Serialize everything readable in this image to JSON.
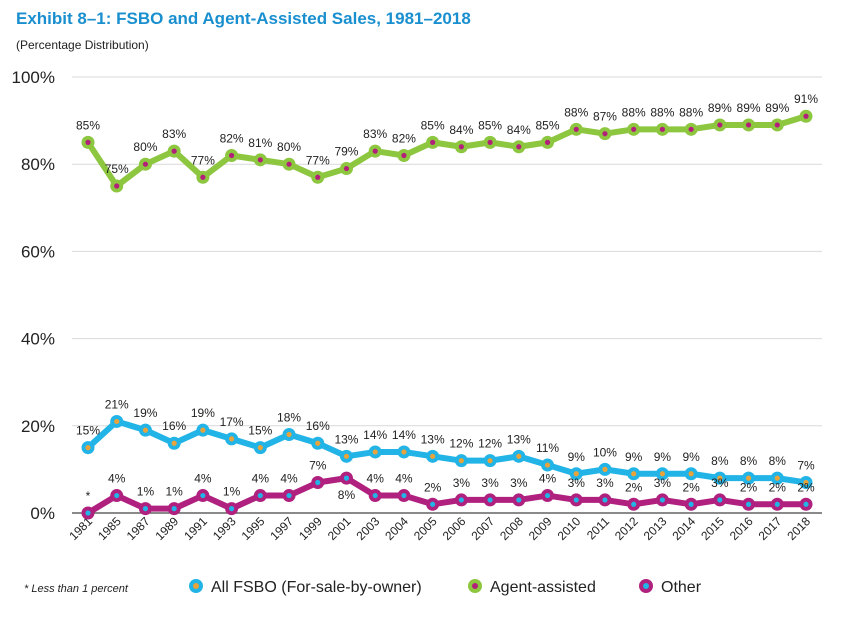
{
  "title": "Exhibit 8–1:  FSBO and Agent-Assisted Sales, 1981–2018",
  "subtitle": "(Percentage Distribution)",
  "footnote": "* Less than 1 percent",
  "chart_data": {
    "type": "line",
    "ylim": [
      0,
      100
    ],
    "yticks": [
      "0%",
      "20%",
      "40%",
      "60%",
      "80%",
      "100%"
    ],
    "grid": true,
    "legend": "bottom",
    "categories": [
      "1981",
      "1985",
      "1987",
      "1989",
      "1991",
      "1993",
      "1995",
      "1997",
      "1999",
      "2001",
      "2003",
      "2004",
      "2005",
      "2006",
      "2007",
      "2008",
      "2009",
      "2010",
      "2011",
      "2012",
      "2013",
      "2014",
      "2015",
      "2016",
      "2017",
      "2018"
    ],
    "series": [
      {
        "name": "All FSBO (For-sale-by-owner)",
        "line_color": "#22b4e6",
        "marker_color": "#e8a33b",
        "label_pos": "above",
        "values": [
          15,
          21,
          19,
          16,
          19,
          17,
          15,
          18,
          16,
          13,
          14,
          14,
          13,
          12,
          12,
          13,
          11,
          9,
          10,
          9,
          9,
          9,
          8,
          8,
          8,
          7
        ],
        "labels": [
          "15%",
          "21%",
          "19%",
          "16%",
          "19%",
          "17%",
          "15%",
          "18%",
          "16%",
          "13%",
          "14%",
          "14%",
          "13%",
          "12%",
          "12%",
          "13%",
          "11%",
          "9%",
          "10%",
          "9%",
          "9%",
          "9%",
          "8%",
          "8%",
          "8%",
          "7%"
        ]
      },
      {
        "name": "Agent-assisted",
        "line_color": "#8dc63f",
        "marker_color": "#b3207a",
        "label_pos": "above",
        "values": [
          85,
          75,
          80,
          83,
          77,
          82,
          81,
          80,
          77,
          79,
          83,
          82,
          85,
          84,
          85,
          84,
          85,
          88,
          87,
          88,
          88,
          88,
          89,
          89,
          89,
          91
        ],
        "labels": [
          "85%",
          "75%",
          "80%",
          "83%",
          "77%",
          "82%",
          "81%",
          "80%",
          "77%",
          "79%",
          "83%",
          "82%",
          "85%",
          "84%",
          "85%",
          "84%",
          "85%",
          "88%",
          "87%",
          "88%",
          "88%",
          "88%",
          "89%",
          "89%",
          "89%",
          "91%"
        ]
      },
      {
        "name": "Other",
        "line_color": "#b0207e",
        "marker_color": "#22b4e6",
        "label_pos": "above",
        "values": [
          0,
          4,
          1,
          1,
          4,
          1,
          4,
          4,
          7,
          8,
          4,
          4,
          2,
          3,
          3,
          3,
          4,
          3,
          3,
          2,
          3,
          2,
          3,
          2,
          2,
          2
        ],
        "labels": [
          "*",
          "4%",
          "1%",
          "1%",
          "4%",
          "1%",
          "4%",
          "4%",
          "7%",
          "8%",
          "4%",
          "4%",
          "2%",
          "3%",
          "3%",
          "3%",
          "4%",
          "3%",
          "3%",
          "2%",
          "3%",
          "2%",
          "3%",
          "2%",
          "2%",
          "2%"
        ]
      }
    ]
  }
}
